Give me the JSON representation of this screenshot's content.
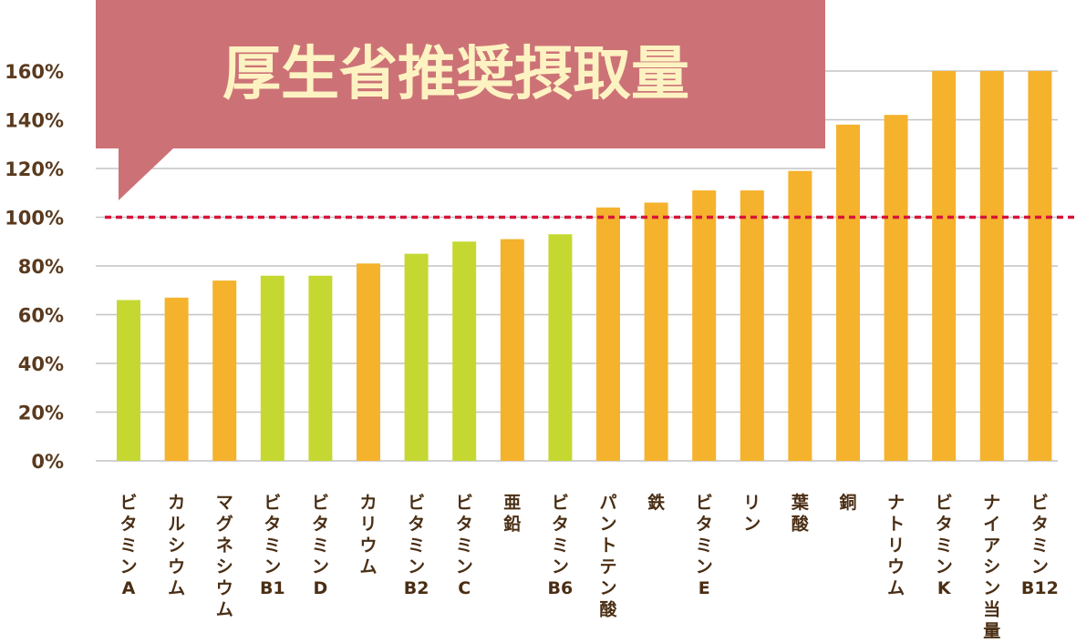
{
  "chart_data": {
    "type": "bar",
    "title": "厚生省推奨摂取量",
    "categories": [
      "ビタミンA",
      "カルシウム",
      "マグネシウム",
      "ビタミンB1",
      "ビタミンD",
      "カリウム",
      "ビタミンB2",
      "ビタミンC",
      "亜鉛",
      "ビタミンB6",
      "パントテン酸",
      "鉄",
      "ビタミンE",
      "リン",
      "葉酸",
      "銅",
      "ナトリウム",
      "ビタミンK",
      "ナイアシン当量",
      "ビタミンB12"
    ],
    "values": [
      66,
      67,
      74,
      76,
      76,
      81,
      85,
      90,
      91,
      93,
      104,
      106,
      111,
      111,
      119,
      138,
      142,
      160,
      160,
      160
    ],
    "bar_colors": [
      "#c5d832",
      "#f5b22d",
      "#f5b22d",
      "#c5d832",
      "#c5d832",
      "#f5b22d",
      "#c5d832",
      "#c5d832",
      "#f5b22d",
      "#c5d832",
      "#f5b22d",
      "#f5b22d",
      "#f5b22d",
      "#f5b22d",
      "#f5b22d",
      "#f5b22d",
      "#f5b22d",
      "#f5b22d",
      "#f5b22d",
      "#f5b22d"
    ],
    "yticks": [
      "0%",
      "20%",
      "40%",
      "60%",
      "80%",
      "100%",
      "120%",
      "140%",
      "160%"
    ],
    "ylim": [
      0,
      160
    ],
    "reference_line": 100,
    "reference_line_color": "#d8143a",
    "title_box_color": "#cc7277",
    "title_text_color": "#fdf3c2",
    "grid": true,
    "xlabel": "",
    "ylabel": ""
  }
}
